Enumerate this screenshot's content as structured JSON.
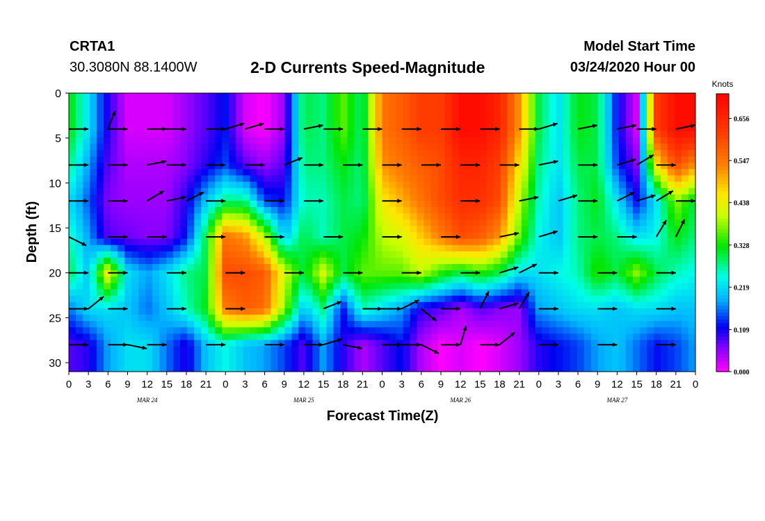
{
  "header": {
    "station": "CRTA1",
    "location": "30.3080N 88.1400W",
    "title": "2-D Currents Speed-Magnitude",
    "start_label": "Model Start Time",
    "start_value": "03/24/2020 Hour 00"
  },
  "chart_data": {
    "type": "heatmap",
    "title": "2-D Currents Speed-Magnitude",
    "xlabel": "Forecast Time(Z)",
    "ylabel": "Depth (ft)",
    "x_unit": "hours since model start (03/24/2020 00Z)",
    "xlim": [
      0,
      96
    ],
    "ylim": [
      31,
      0
    ],
    "x_tick_values": [
      0,
      3,
      6,
      9,
      12,
      15,
      18,
      21,
      24,
      27,
      30,
      33,
      36,
      39,
      42,
      45,
      48,
      51,
      54,
      57,
      60,
      63,
      66,
      69,
      72,
      75,
      78,
      81,
      84,
      87,
      90,
      93,
      96
    ],
    "x_tick_labels": [
      "0",
      "3",
      "6",
      "9",
      "12",
      "15",
      "18",
      "21",
      "0",
      "3",
      "6",
      "9",
      "12",
      "15",
      "18",
      "21",
      "0",
      "3",
      "6",
      "9",
      "12",
      "15",
      "18",
      "21",
      "0",
      "3",
      "6",
      "9",
      "12",
      "15",
      "18",
      "21",
      "0"
    ],
    "date_labels": [
      {
        "text": "MAR 24",
        "x": 12
      },
      {
        "text": "MAR 25",
        "x": 36
      },
      {
        "text": "MAR 26",
        "x": 60
      },
      {
        "text": "MAR 27",
        "x": 84
      }
    ],
    "y_ticks": [
      0,
      5,
      10,
      15,
      20,
      25,
      30
    ],
    "colorbar": {
      "unit": "Knots",
      "min": 0.0,
      "max": 0.72,
      "tick_values": [
        0.0,
        0.109,
        0.219,
        0.328,
        0.438,
        0.547,
        0.656
      ],
      "tick_labels": [
        "0.000",
        "0.109",
        "0.219",
        "0.328",
        "0.438",
        "0.547",
        "0.656"
      ]
    },
    "depths": [
      4,
      8,
      12,
      16,
      20,
      24,
      28
    ],
    "times": [
      0,
      3,
      6,
      9,
      12,
      15,
      18,
      21,
      24,
      27,
      30,
      33,
      36,
      39,
      42,
      45,
      48,
      51,
      54,
      57,
      60,
      63,
      66,
      69,
      72,
      75,
      78,
      81,
      84,
      87,
      90,
      93,
      96
    ],
    "speed": [
      [
        0.33,
        0.22,
        0.1,
        0.02,
        0.02,
        0.02,
        0.05,
        0.08,
        0.12,
        0.02,
        0.0,
        0.05,
        0.3,
        0.28,
        0.36,
        0.28,
        0.55,
        0.58,
        0.62,
        0.62,
        0.7,
        0.7,
        0.66,
        0.52,
        0.3,
        0.22,
        0.32,
        0.3,
        0.12,
        0.02,
        0.62,
        0.7,
        0.7
      ],
      [
        0.28,
        0.18,
        0.08,
        0.04,
        0.04,
        0.04,
        0.06,
        0.1,
        0.14,
        0.08,
        0.05,
        0.08,
        0.28,
        0.28,
        0.32,
        0.28,
        0.52,
        0.55,
        0.58,
        0.6,
        0.66,
        0.66,
        0.62,
        0.46,
        0.28,
        0.22,
        0.3,
        0.3,
        0.14,
        0.06,
        0.45,
        0.6,
        0.52
      ],
      [
        0.22,
        0.15,
        0.06,
        0.05,
        0.05,
        0.05,
        0.1,
        0.2,
        0.28,
        0.28,
        0.14,
        0.12,
        0.26,
        0.26,
        0.3,
        0.28,
        0.45,
        0.5,
        0.55,
        0.6,
        0.64,
        0.64,
        0.6,
        0.4,
        0.26,
        0.2,
        0.28,
        0.32,
        0.22,
        0.12,
        0.22,
        0.38,
        0.3
      ],
      [
        0.26,
        0.18,
        0.08,
        0.07,
        0.06,
        0.06,
        0.12,
        0.3,
        0.55,
        0.52,
        0.4,
        0.2,
        0.3,
        0.26,
        0.3,
        0.32,
        0.4,
        0.42,
        0.48,
        0.54,
        0.6,
        0.58,
        0.52,
        0.36,
        0.24,
        0.2,
        0.28,
        0.3,
        0.28,
        0.22,
        0.24,
        0.32,
        0.28
      ],
      [
        0.3,
        0.2,
        0.45,
        0.22,
        0.18,
        0.22,
        0.28,
        0.3,
        0.6,
        0.6,
        0.58,
        0.42,
        0.3,
        0.42,
        0.3,
        0.36,
        0.36,
        0.36,
        0.4,
        0.34,
        0.3,
        0.34,
        0.3,
        0.22,
        0.22,
        0.24,
        0.26,
        0.34,
        0.3,
        0.38,
        0.3,
        0.26,
        0.24
      ],
      [
        0.16,
        0.22,
        0.22,
        0.2,
        0.16,
        0.2,
        0.26,
        0.32,
        0.54,
        0.58,
        0.56,
        0.38,
        0.2,
        0.28,
        0.12,
        0.26,
        0.22,
        0.18,
        0.1,
        0.08,
        0.04,
        0.08,
        0.06,
        0.05,
        0.18,
        0.2,
        0.22,
        0.22,
        0.2,
        0.22,
        0.22,
        0.2,
        0.2
      ],
      [
        0.08,
        0.1,
        0.18,
        0.22,
        0.22,
        0.16,
        0.1,
        0.2,
        0.24,
        0.2,
        0.18,
        0.14,
        0.08,
        0.18,
        0.1,
        0.04,
        0.08,
        0.12,
        0.04,
        0.0,
        0.02,
        0.0,
        0.02,
        0.05,
        0.1,
        0.12,
        0.14,
        0.18,
        0.2,
        0.16,
        0.12,
        0.14,
        0.18
      ]
    ],
    "vectors": [
      {
        "t": 0,
        "d": 4,
        "u": 1.0,
        "v": 0.0
      },
      {
        "t": 6,
        "d": 4,
        "u": 0.4,
        "v": 1.0
      },
      {
        "t": 6,
        "d": 4,
        "u": 1.0,
        "v": 0.0
      },
      {
        "t": 12,
        "d": 4,
        "u": 1.0,
        "v": 0.0
      },
      {
        "t": 15,
        "d": 4,
        "u": 1.0,
        "v": 0.0
      },
      {
        "t": 21,
        "d": 4,
        "u": 1.0,
        "v": 0.0
      },
      {
        "t": 24,
        "d": 4,
        "u": 1.0,
        "v": 0.3
      },
      {
        "t": 27,
        "d": 4,
        "u": 1.0,
        "v": 0.3
      },
      {
        "t": 30,
        "d": 4,
        "u": 1.0,
        "v": 0.0
      },
      {
        "t": 36,
        "d": 4,
        "u": 1.0,
        "v": 0.2
      },
      {
        "t": 39,
        "d": 4,
        "u": 1.0,
        "v": 0.0
      },
      {
        "t": 45,
        "d": 4,
        "u": 1.0,
        "v": 0.0
      },
      {
        "t": 51,
        "d": 4,
        "u": 1.0,
        "v": 0.0
      },
      {
        "t": 57,
        "d": 4,
        "u": 1.0,
        "v": 0.0
      },
      {
        "t": 63,
        "d": 4,
        "u": 1.0,
        "v": 0.0
      },
      {
        "t": 69,
        "d": 4,
        "u": 1.0,
        "v": 0.0
      },
      {
        "t": 72,
        "d": 4,
        "u": 1.0,
        "v": 0.3
      },
      {
        "t": 78,
        "d": 4,
        "u": 1.0,
        "v": 0.2
      },
      {
        "t": 84,
        "d": 4,
        "u": 1.0,
        "v": 0.2
      },
      {
        "t": 87,
        "d": 4,
        "u": 1.0,
        "v": 0.0
      },
      {
        "t": 93,
        "d": 4,
        "u": 1.0,
        "v": 0.2
      },
      {
        "t": 0,
        "d": 8,
        "u": 1.0,
        "v": 0.0
      },
      {
        "t": 6,
        "d": 8,
        "u": 1.0,
        "v": 0.0
      },
      {
        "t": 12,
        "d": 8,
        "u": 1.0,
        "v": 0.2
      },
      {
        "t": 15,
        "d": 8,
        "u": 1.0,
        "v": 0.0
      },
      {
        "t": 21,
        "d": 8,
        "u": 1.0,
        "v": 0.0
      },
      {
        "t": 27,
        "d": 8,
        "u": 1.0,
        "v": 0.0
      },
      {
        "t": 33,
        "d": 8,
        "u": 1.0,
        "v": 0.4
      },
      {
        "t": 36,
        "d": 8,
        "u": 1.0,
        "v": 0.0
      },
      {
        "t": 42,
        "d": 8,
        "u": 1.0,
        "v": 0.0
      },
      {
        "t": 48,
        "d": 8,
        "u": 1.0,
        "v": 0.0
      },
      {
        "t": 54,
        "d": 8,
        "u": 1.0,
        "v": 0.0
      },
      {
        "t": 60,
        "d": 8,
        "u": 1.0,
        "v": 0.0
      },
      {
        "t": 66,
        "d": 8,
        "u": 1.0,
        "v": 0.0
      },
      {
        "t": 72,
        "d": 8,
        "u": 1.0,
        "v": 0.2
      },
      {
        "t": 78,
        "d": 8,
        "u": 1.0,
        "v": 0.0
      },
      {
        "t": 84,
        "d": 8,
        "u": 1.0,
        "v": 0.3
      },
      {
        "t": 87,
        "d": 8,
        "u": 1.0,
        "v": 0.6
      },
      {
        "t": 90,
        "d": 8,
        "u": 1.0,
        "v": 0.0
      },
      {
        "t": 0,
        "d": 12,
        "u": 1.0,
        "v": 0.0
      },
      {
        "t": 6,
        "d": 12,
        "u": 1.0,
        "v": 0.0
      },
      {
        "t": 12,
        "d": 12,
        "u": 1.0,
        "v": 0.6
      },
      {
        "t": 15,
        "d": 12,
        "u": 1.0,
        "v": 0.2
      },
      {
        "t": 18,
        "d": 12,
        "u": 1.0,
        "v": 0.5
      },
      {
        "t": 21,
        "d": 12,
        "u": 1.0,
        "v": 0.0
      },
      {
        "t": 30,
        "d": 12,
        "u": 1.0,
        "v": 0.0
      },
      {
        "t": 36,
        "d": 12,
        "u": 1.0,
        "v": 0.0
      },
      {
        "t": 48,
        "d": 12,
        "u": 1.0,
        "v": 0.0
      },
      {
        "t": 60,
        "d": 12,
        "u": 1.0,
        "v": 0.0
      },
      {
        "t": 69,
        "d": 12,
        "u": 1.0,
        "v": 0.2
      },
      {
        "t": 75,
        "d": 12,
        "u": 1.0,
        "v": 0.3
      },
      {
        "t": 78,
        "d": 12,
        "u": 1.0,
        "v": 0.0
      },
      {
        "t": 84,
        "d": 12,
        "u": 1.0,
        "v": 0.5
      },
      {
        "t": 87,
        "d": 12,
        "u": 1.0,
        "v": 0.3
      },
      {
        "t": 90,
        "d": 12,
        "u": 1.0,
        "v": 0.6
      },
      {
        "t": 93,
        "d": 12,
        "u": 1.0,
        "v": 0.0
      },
      {
        "t": 0,
        "d": 16,
        "u": 1.0,
        "v": -0.5
      },
      {
        "t": 6,
        "d": 16,
        "u": 1.0,
        "v": 0.0
      },
      {
        "t": 12,
        "d": 16,
        "u": 1.0,
        "v": 0.0
      },
      {
        "t": 21,
        "d": 16,
        "u": 1.0,
        "v": 0.0
      },
      {
        "t": 30,
        "d": 16,
        "u": 1.0,
        "v": 0.0
      },
      {
        "t": 39,
        "d": 16,
        "u": 1.0,
        "v": 0.0
      },
      {
        "t": 48,
        "d": 16,
        "u": 1.0,
        "v": 0.0
      },
      {
        "t": 57,
        "d": 16,
        "u": 1.0,
        "v": 0.0
      },
      {
        "t": 66,
        "d": 16,
        "u": 1.0,
        "v": 0.2
      },
      {
        "t": 72,
        "d": 16,
        "u": 1.0,
        "v": 0.3
      },
      {
        "t": 78,
        "d": 16,
        "u": 1.0,
        "v": 0.0
      },
      {
        "t": 84,
        "d": 16,
        "u": 1.0,
        "v": 0.0
      },
      {
        "t": 90,
        "d": 16,
        "u": 0.6,
        "v": 1.0
      },
      {
        "t": 93,
        "d": 16,
        "u": 0.5,
        "v": 1.0
      },
      {
        "t": 0,
        "d": 20,
        "u": 1.0,
        "v": 0.0
      },
      {
        "t": 6,
        "d": 20,
        "u": 1.0,
        "v": 0.0
      },
      {
        "t": 15,
        "d": 20,
        "u": 1.0,
        "v": 0.0
      },
      {
        "t": 24,
        "d": 20,
        "u": 1.0,
        "v": 0.0
      },
      {
        "t": 33,
        "d": 20,
        "u": 1.0,
        "v": 0.0
      },
      {
        "t": 42,
        "d": 20,
        "u": 1.0,
        "v": 0.0
      },
      {
        "t": 51,
        "d": 20,
        "u": 1.0,
        "v": 0.0
      },
      {
        "t": 60,
        "d": 20,
        "u": 1.0,
        "v": 0.0
      },
      {
        "t": 66,
        "d": 20,
        "u": 1.0,
        "v": 0.3
      },
      {
        "t": 69,
        "d": 20,
        "u": 1.0,
        "v": 0.5
      },
      {
        "t": 72,
        "d": 20,
        "u": 1.0,
        "v": 0.0
      },
      {
        "t": 81,
        "d": 20,
        "u": 1.0,
        "v": 0.0
      },
      {
        "t": 90,
        "d": 20,
        "u": 1.0,
        "v": 0.0
      },
      {
        "t": 0,
        "d": 24,
        "u": 1.0,
        "v": 0.0
      },
      {
        "t": 3,
        "d": 24,
        "u": 1.0,
        "v": 0.8
      },
      {
        "t": 6,
        "d": 24,
        "u": 1.0,
        "v": 0.0
      },
      {
        "t": 15,
        "d": 24,
        "u": 1.0,
        "v": 0.0
      },
      {
        "t": 24,
        "d": 24,
        "u": 1.0,
        "v": 0.0
      },
      {
        "t": 39,
        "d": 24,
        "u": 1.0,
        "v": 0.4
      },
      {
        "t": 45,
        "d": 24,
        "u": 1.0,
        "v": 0.0
      },
      {
        "t": 48,
        "d": 24,
        "u": 1.0,
        "v": 0.0
      },
      {
        "t": 51,
        "d": 24,
        "u": 1.0,
        "v": 0.5
      },
      {
        "t": 54,
        "d": 24,
        "u": 1.0,
        "v": -0.8
      },
      {
        "t": 57,
        "d": 24,
        "u": 1.0,
        "v": 0.0
      },
      {
        "t": 63,
        "d": 24,
        "u": 0.5,
        "v": 1.0
      },
      {
        "t": 66,
        "d": 24,
        "u": 1.0,
        "v": 0.3
      },
      {
        "t": 69,
        "d": 24,
        "u": 0.6,
        "v": 1.0
      },
      {
        "t": 72,
        "d": 24,
        "u": 1.0,
        "v": 0.0
      },
      {
        "t": 81,
        "d": 24,
        "u": 1.0,
        "v": 0.0
      },
      {
        "t": 90,
        "d": 24,
        "u": 1.0,
        "v": 0.0
      },
      {
        "t": 0,
        "d": 28,
        "u": 1.0,
        "v": 0.0
      },
      {
        "t": 6,
        "d": 28,
        "u": 1.0,
        "v": 0.0
      },
      {
        "t": 9,
        "d": 28,
        "u": 1.0,
        "v": -0.2
      },
      {
        "t": 12,
        "d": 28,
        "u": 1.0,
        "v": 0.0
      },
      {
        "t": 21,
        "d": 28,
        "u": 1.0,
        "v": 0.0
      },
      {
        "t": 30,
        "d": 28,
        "u": 1.0,
        "v": 0.0
      },
      {
        "t": 36,
        "d": 28,
        "u": 1.0,
        "v": 0.0
      },
      {
        "t": 39,
        "d": 28,
        "u": 1.0,
        "v": 0.3
      },
      {
        "t": 42,
        "d": 28,
        "u": 1.0,
        "v": -0.2
      },
      {
        "t": 48,
        "d": 28,
        "u": 1.0,
        "v": 0.0
      },
      {
        "t": 51,
        "d": 28,
        "u": 1.0,
        "v": 0.0
      },
      {
        "t": 54,
        "d": 28,
        "u": 1.0,
        "v": -0.5
      },
      {
        "t": 57,
        "d": 28,
        "u": 1.0,
        "v": 0.0
      },
      {
        "t": 60,
        "d": 28,
        "u": 0.3,
        "v": 1.0
      },
      {
        "t": 63,
        "d": 28,
        "u": 1.0,
        "v": 0.0
      },
      {
        "t": 66,
        "d": 28,
        "u": 1.0,
        "v": 0.8
      },
      {
        "t": 72,
        "d": 28,
        "u": 1.0,
        "v": 0.0
      },
      {
        "t": 81,
        "d": 28,
        "u": 1.0,
        "v": 0.0
      },
      {
        "t": 90,
        "d": 28,
        "u": 1.0,
        "v": 0.0
      }
    ]
  }
}
